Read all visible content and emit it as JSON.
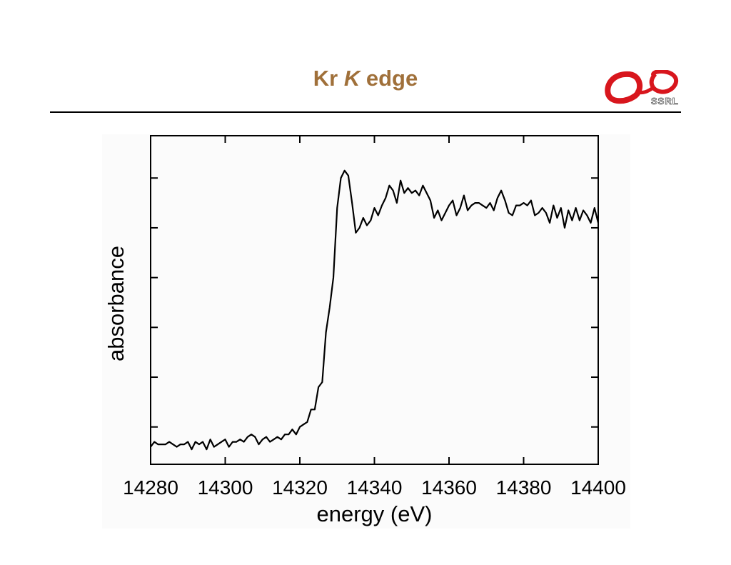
{
  "slide": {
    "title_prefix": "Kr ",
    "title_italic": "K",
    "title_suffix": " edge",
    "title_color": "#a0703a",
    "logo_text": "SSRL",
    "logo_color": "#d8161d"
  },
  "chart_data": {
    "type": "line",
    "title": "",
    "xlabel": "energy (eV)",
    "ylabel": "absorbance",
    "xlim": [
      14280,
      14400
    ],
    "ylim": [
      -0.05,
      1.27
    ],
    "xticks": [
      14280,
      14300,
      14320,
      14340,
      14360,
      14380,
      14400
    ],
    "yticks": [
      0.1,
      0.3,
      0.5,
      0.7,
      0.9,
      1.1
    ],
    "y_tick_labels_shown": false,
    "grid": false,
    "line_color": "#000000",
    "series": [
      {
        "x": [
          14280,
          14281,
          14282,
          14283,
          14284,
          14285,
          14286,
          14287,
          14288,
          14289,
          14290,
          14291,
          14292,
          14293,
          14294,
          14295,
          14296,
          14297,
          14298,
          14299,
          14300,
          14301,
          14302,
          14303,
          14304,
          14305,
          14306,
          14307,
          14308,
          14309,
          14310,
          14311,
          14312,
          14313,
          14314,
          14315,
          14316,
          14317,
          14318,
          14319,
          14320,
          14321,
          14322,
          14323,
          14324,
          14325,
          14326,
          14327,
          14328,
          14329,
          14330,
          14331,
          14332,
          14333,
          14334,
          14335,
          14336,
          14337,
          14338,
          14339,
          14340,
          14341,
          14342,
          14343,
          14344,
          14345,
          14346,
          14347,
          14348,
          14349,
          14350,
          14351,
          14352,
          14353,
          14354,
          14355,
          14356,
          14357,
          14358,
          14359,
          14360,
          14361,
          14362,
          14363,
          14364,
          14365,
          14366,
          14367,
          14368,
          14369,
          14370,
          14371,
          14372,
          14373,
          14374,
          14375,
          14376,
          14377,
          14378,
          14379,
          14380,
          14381,
          14382,
          14383,
          14384,
          14385,
          14386,
          14387,
          14388,
          14389,
          14390,
          14391,
          14392,
          14393,
          14394,
          14395,
          14396,
          14397,
          14398,
          14399,
          14400
        ],
        "y": [
          0.02,
          0.04,
          0.03,
          0.03,
          0.03,
          0.04,
          0.03,
          0.02,
          0.03,
          0.03,
          0.04,
          0.01,
          0.04,
          0.03,
          0.04,
          0.01,
          0.05,
          0.02,
          0.03,
          0.04,
          0.05,
          0.02,
          0.04,
          0.04,
          0.05,
          0.04,
          0.06,
          0.07,
          0.06,
          0.03,
          0.05,
          0.06,
          0.04,
          0.05,
          0.06,
          0.05,
          0.07,
          0.07,
          0.09,
          0.07,
          0.1,
          0.11,
          0.12,
          0.17,
          0.17,
          0.26,
          0.28,
          0.48,
          0.58,
          0.7,
          0.98,
          1.1,
          1.13,
          1.11,
          1.0,
          0.88,
          0.9,
          0.94,
          0.91,
          0.93,
          0.98,
          0.95,
          0.99,
          1.02,
          1.07,
          1.05,
          1.0,
          1.09,
          1.04,
          1.06,
          1.04,
          1.05,
          1.03,
          1.07,
          1.04,
          1.01,
          0.94,
          0.97,
          0.93,
          0.96,
          0.99,
          1.01,
          0.95,
          0.98,
          1.03,
          0.97,
          0.99,
          1.0,
          1.0,
          0.99,
          0.98,
          1.0,
          0.97,
          1.02,
          1.05,
          1.01,
          0.96,
          0.95,
          0.99,
          0.99,
          1.0,
          0.99,
          1.01,
          0.95,
          0.96,
          0.98,
          0.96,
          0.92,
          0.99,
          0.94,
          0.98,
          0.9,
          0.97,
          0.93,
          0.98,
          0.93,
          0.97,
          0.95,
          0.92,
          0.98,
          0.92
        ]
      }
    ]
  }
}
